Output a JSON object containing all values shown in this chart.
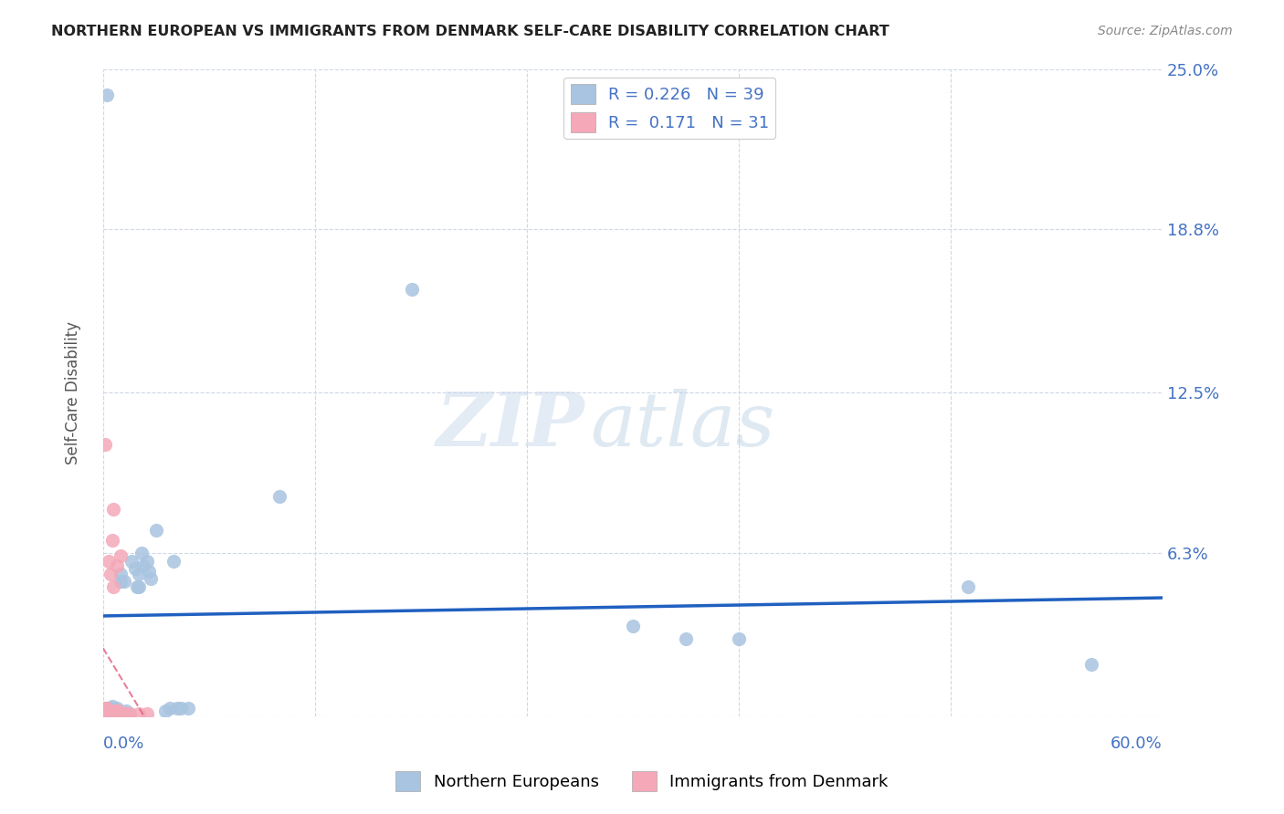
{
  "title": "NORTHERN EUROPEAN VS IMMIGRANTS FROM DENMARK SELF-CARE DISABILITY CORRELATION CHART",
  "source": "Source: ZipAtlas.com",
  "xlabel": "",
  "ylabel": "Self-Care Disability",
  "xlim": [
    0.0,
    0.6
  ],
  "ylim": [
    0.0,
    0.25
  ],
  "yticks": [
    0.0,
    0.063,
    0.125,
    0.188,
    0.25
  ],
  "ytick_labels": [
    "",
    "6.3%",
    "12.5%",
    "18.8%",
    "25.0%"
  ],
  "blue_R": "0.226",
  "blue_N": "39",
  "pink_R": "0.171",
  "pink_N": "31",
  "blue_color": "#a8c4e0",
  "pink_color": "#f4a8b8",
  "blue_line_color": "#2060c0",
  "pink_line_color": "#e06080",
  "blue_scatter": [
    [
      0.002,
      0.24
    ],
    [
      0.001,
      0.002
    ],
    [
      0.001,
      0.003
    ],
    [
      0.003,
      0.001
    ],
    [
      0.005,
      0.004
    ],
    [
      0.004,
      0.003
    ],
    [
      0.006,
      0.001
    ],
    [
      0.007,
      0.002
    ],
    [
      0.008,
      0.003
    ],
    [
      0.009,
      0.001
    ],
    [
      0.01,
      0.052
    ],
    [
      0.01,
      0.055
    ],
    [
      0.012,
      0.052
    ],
    [
      0.013,
      0.002
    ],
    [
      0.015,
      0.001
    ],
    [
      0.016,
      0.06
    ],
    [
      0.018,
      0.057
    ],
    [
      0.019,
      0.05
    ],
    [
      0.02,
      0.055
    ],
    [
      0.02,
      0.05
    ],
    [
      0.022,
      0.063
    ],
    [
      0.023,
      0.058
    ],
    [
      0.025,
      0.06
    ],
    [
      0.026,
      0.056
    ],
    [
      0.027,
      0.053
    ],
    [
      0.03,
      0.072
    ],
    [
      0.035,
      0.002
    ],
    [
      0.038,
      0.003
    ],
    [
      0.04,
      0.06
    ],
    [
      0.042,
      0.003
    ],
    [
      0.044,
      0.003
    ],
    [
      0.048,
      0.003
    ],
    [
      0.1,
      0.085
    ],
    [
      0.175,
      0.165
    ],
    [
      0.3,
      0.035
    ],
    [
      0.33,
      0.03
    ],
    [
      0.36,
      0.03
    ],
    [
      0.49,
      0.05
    ],
    [
      0.56,
      0.02
    ]
  ],
  "pink_scatter": [
    [
      0.001,
      0.105
    ],
    [
      0.001,
      0.001
    ],
    [
      0.001,
      0.002
    ],
    [
      0.001,
      0.003
    ],
    [
      0.002,
      0.001
    ],
    [
      0.002,
      0.002
    ],
    [
      0.002,
      0.003
    ],
    [
      0.003,
      0.001
    ],
    [
      0.003,
      0.06
    ],
    [
      0.004,
      0.001
    ],
    [
      0.004,
      0.002
    ],
    [
      0.004,
      0.055
    ],
    [
      0.005,
      0.001
    ],
    [
      0.005,
      0.068
    ],
    [
      0.006,
      0.001
    ],
    [
      0.006,
      0.002
    ],
    [
      0.006,
      0.05
    ],
    [
      0.006,
      0.08
    ],
    [
      0.007,
      0.001
    ],
    [
      0.008,
      0.001
    ],
    [
      0.008,
      0.002
    ],
    [
      0.008,
      0.058
    ],
    [
      0.009,
      0.001
    ],
    [
      0.009,
      0.002
    ],
    [
      0.01,
      0.001
    ],
    [
      0.01,
      0.062
    ],
    [
      0.012,
      0.001
    ],
    [
      0.013,
      0.001
    ],
    [
      0.015,
      0.001
    ],
    [
      0.02,
      0.001
    ],
    [
      0.025,
      0.001
    ]
  ],
  "background_color": "#ffffff",
  "grid_color": "#d0d8e8",
  "watermark_zip": "ZIP",
  "watermark_atlas": "atlas"
}
